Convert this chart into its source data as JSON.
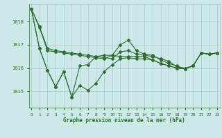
{
  "background_color": "#cce8e8",
  "grid_color": "#aacccc",
  "line_color": "#2d6e2d",
  "text_color": "#2d6e2d",
  "xlabel": "Graphe pression niveau de la mer (hPa)",
  "x_ticks": [
    0,
    1,
    2,
    3,
    4,
    5,
    6,
    7,
    8,
    9,
    10,
    11,
    12,
    13,
    14,
    15,
    16,
    17,
    18,
    19,
    20,
    21,
    22,
    23
  ],
  "y_ticks": [
    1015,
    1016,
    1017,
    1018
  ],
  "ylim": [
    1014.3,
    1018.75
  ],
  "xlim": [
    -0.3,
    23.3
  ],
  "line1": [
    1018.55,
    1017.8,
    1016.85,
    1016.75,
    1016.7,
    1016.65,
    1016.6,
    1016.55,
    1016.5,
    1016.45,
    1016.4,
    1016.7,
    1016.75,
    1016.6,
    1016.55,
    1016.5,
    1016.4,
    1016.3,
    1016.05,
    1016.0,
    1016.1,
    1016.65,
    1016.6,
    1016.65
  ],
  "line2": [
    1018.55,
    1017.75,
    1016.75,
    1016.7,
    1016.65,
    1016.6,
    1016.55,
    1016.5,
    1016.45,
    1016.4,
    1016.55,
    1017.0,
    1017.2,
    1016.75,
    1016.6,
    1016.55,
    1016.35,
    1016.2,
    1016.1,
    1015.97,
    1016.1,
    1016.65,
    1016.6,
    1016.65
  ],
  "line3": [
    1018.55,
    1016.85,
    1015.9,
    1015.2,
    1015.85,
    1014.75,
    1015.25,
    1015.05,
    1015.35,
    1015.85,
    1016.15,
    1016.4,
    1016.45,
    1016.4,
    1016.4,
    1016.35,
    1016.2,
    1016.1,
    1016.0,
    1015.97,
    1016.1,
    1016.65,
    1016.6,
    1016.65
  ],
  "line4": [
    1018.55,
    1016.85,
    1015.9,
    1015.2,
    1015.85,
    1014.75,
    1016.1,
    1016.15,
    1016.5,
    1016.55,
    1016.55,
    1016.5,
    1016.5,
    1016.5,
    1016.5,
    1016.35,
    1016.2,
    1016.1,
    1016.0,
    1015.97,
    1016.1,
    1016.65,
    1016.6,
    1016.65
  ]
}
